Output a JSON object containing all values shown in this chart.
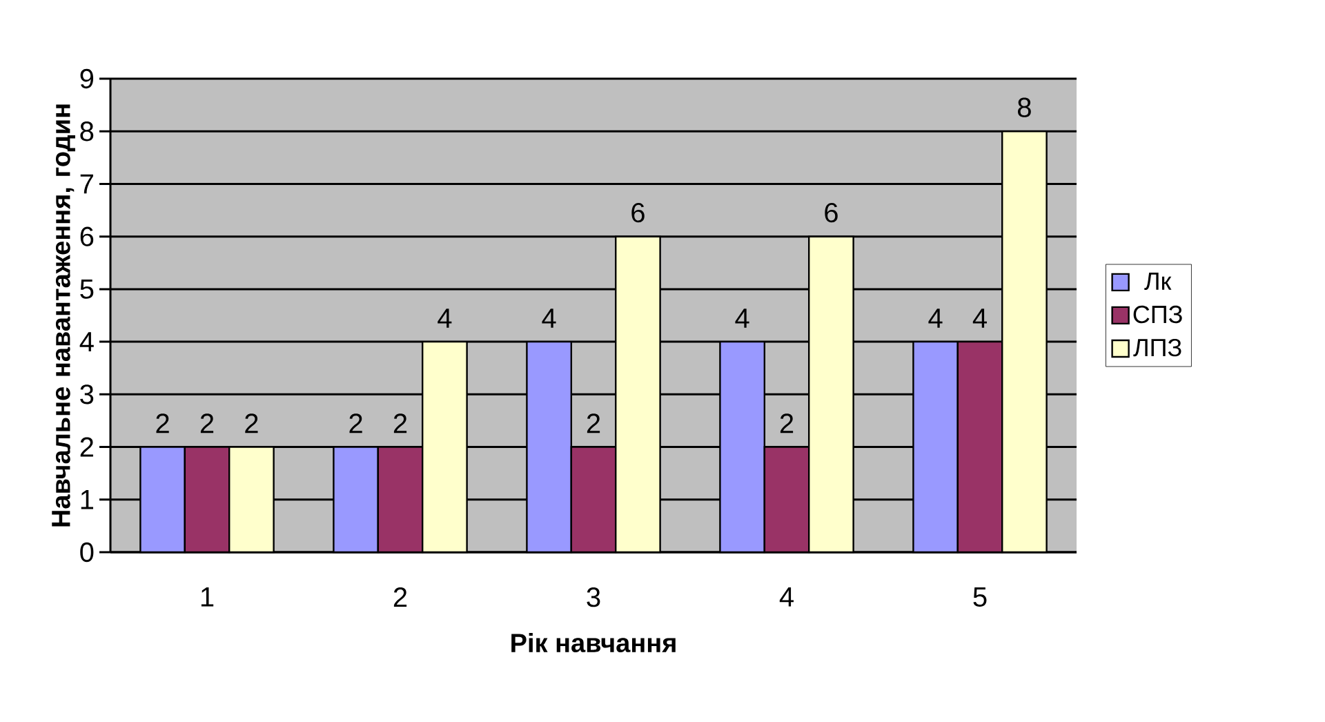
{
  "chart_data": {
    "type": "bar",
    "xlabel": "Рік навчання",
    "ylabel": "Навчальне навантаження, годин",
    "categories": [
      "1",
      "2",
      "3",
      "4",
      "5"
    ],
    "series": [
      {
        "name": "Лк",
        "color": "#9999ff",
        "values": [
          2,
          2,
          4,
          4,
          4
        ]
      },
      {
        "name": "СПЗ",
        "color": "#993366",
        "values": [
          2,
          2,
          2,
          2,
          4
        ]
      },
      {
        "name": "ЛПЗ",
        "color": "#ffffcc",
        "values": [
          2,
          4,
          6,
          6,
          8
        ]
      }
    ],
    "ylim": [
      0,
      9
    ],
    "yticks": [
      0,
      1,
      2,
      3,
      4,
      5,
      6,
      7,
      8,
      9
    ],
    "grid": "y",
    "legend": "right",
    "data_labels": true
  }
}
